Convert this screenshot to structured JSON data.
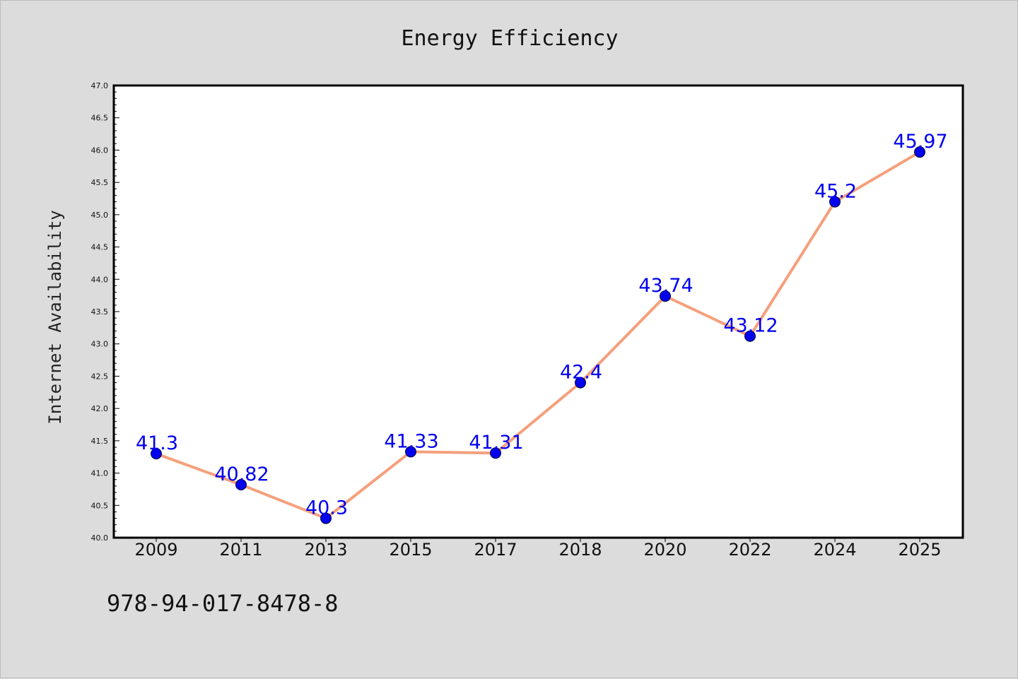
{
  "chart_data": {
    "type": "line",
    "title": "Energy Efficiency",
    "xlabel": "",
    "ylabel": "Internet Availability",
    "categories": [
      "2009",
      "2011",
      "2013",
      "2015",
      "2017",
      "2018",
      "2020",
      "2022",
      "2024",
      "2025"
    ],
    "series": [
      {
        "values": [
          41.3,
          40.82,
          40.3,
          41.33,
          41.31,
          42.4,
          43.74,
          43.12,
          45.2,
          45.97
        ],
        "labels": [
          "41.3",
          "40.82",
          "40.3",
          "41.33",
          "41.31",
          "42.4",
          "43.74",
          "43.12",
          "45.2",
          "45.97"
        ],
        "line_color": "#f4a07c",
        "marker_color": "#0000ee"
      }
    ],
    "ylim": [
      40.0,
      47.0
    ],
    "yticks": [
      "40.0",
      "40.5",
      "41.0",
      "41.5",
      "42.0",
      "42.5",
      "43.0",
      "43.5",
      "44.0",
      "44.5",
      "45.0",
      "45.5",
      "46.0",
      "46.5",
      "47.0"
    ],
    "grid": false,
    "legend": "none"
  },
  "annotation": "978-94-017-8478-8"
}
